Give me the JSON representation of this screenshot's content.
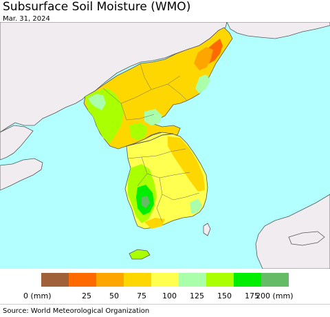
{
  "header": {
    "title": "Subsurface Soil Moisture (WMO)",
    "date": "Mar. 31, 2024"
  },
  "map": {
    "colors": {
      "sea": "#b3ffff",
      "land_outside": "#f0ecf0",
      "border": "#555555"
    }
  },
  "legend": {
    "bins": [
      {
        "color": "#a0603a"
      },
      {
        "color": "#ff6a00"
      },
      {
        "color": "#ffa500"
      },
      {
        "color": "#ffd700"
      },
      {
        "color": "#ffff50"
      },
      {
        "color": "#aaffaa"
      },
      {
        "color": "#aaff00"
      },
      {
        "color": "#00ee00"
      },
      {
        "color": "#66bb66"
      }
    ],
    "tick_labels": [
      "0 (mm)",
      "25",
      "50",
      "75",
      "100",
      "125",
      "150",
      "175",
      "200 (mm)"
    ]
  },
  "footer": {
    "source": "Source: World Meteorological Organization"
  }
}
